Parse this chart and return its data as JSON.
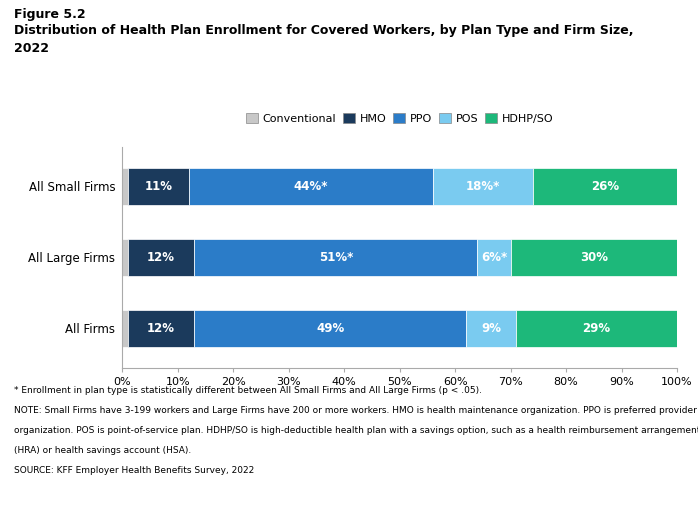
{
  "title_line1": "Figure 5.2",
  "title_line2": "Distribution of Health Plan Enrollment for Covered Workers, by Plan Type and Firm Size,",
  "title_line3": "2022",
  "categories": [
    "All Small Firms",
    "All Large Firms",
    "All Firms"
  ],
  "plan_types": [
    "Conventional",
    "HMO",
    "PPO",
    "POS",
    "HDHP/SO"
  ],
  "colors": [
    "#c8c8c8",
    "#1b3a5c",
    "#2b7cc8",
    "#7acbf0",
    "#1db87a"
  ],
  "data": {
    "All Small Firms": [
      1,
      11,
      44,
      18,
      26
    ],
    "All Large Firms": [
      1,
      12,
      51,
      6,
      30
    ],
    "All Firms": [
      1,
      12,
      49,
      9,
      29
    ]
  },
  "labels": {
    "All Small Firms": [
      "",
      "11%",
      "44%*",
      "18%*",
      "26%"
    ],
    "All Large Firms": [
      "",
      "12%",
      "51%*",
      "6%*",
      "30%"
    ],
    "All Firms": [
      "",
      "12%",
      "49%",
      "9%",
      "29%"
    ]
  },
  "footnote1": "* Enrollment in plan type is statistically different between All Small Firms and All Large Firms (p < .05).",
  "footnote2": "NOTE: Small Firms have 3-199 workers and Large Firms have 200 or more workers. HMO is health maintenance organization. PPO is preferred provider",
  "footnote3": "organization. POS is point-of-service plan. HDHP/SO is high-deductible health plan with a savings option, such as a health reimbursement arrangement",
  "footnote4": "(HRA) or health savings account (HSA).",
  "footnote5": "SOURCE: KFF Employer Health Benefits Survey, 2022",
  "xlabel_ticks": [
    "0%",
    "10%",
    "20%",
    "30%",
    "40%",
    "50%",
    "60%",
    "70%",
    "80%",
    "90%",
    "100%"
  ],
  "xlabel_vals": [
    0,
    10,
    20,
    30,
    40,
    50,
    60,
    70,
    80,
    90,
    100
  ],
  "ylim": [
    -0.55,
    2.55
  ],
  "bar_height": 0.52
}
